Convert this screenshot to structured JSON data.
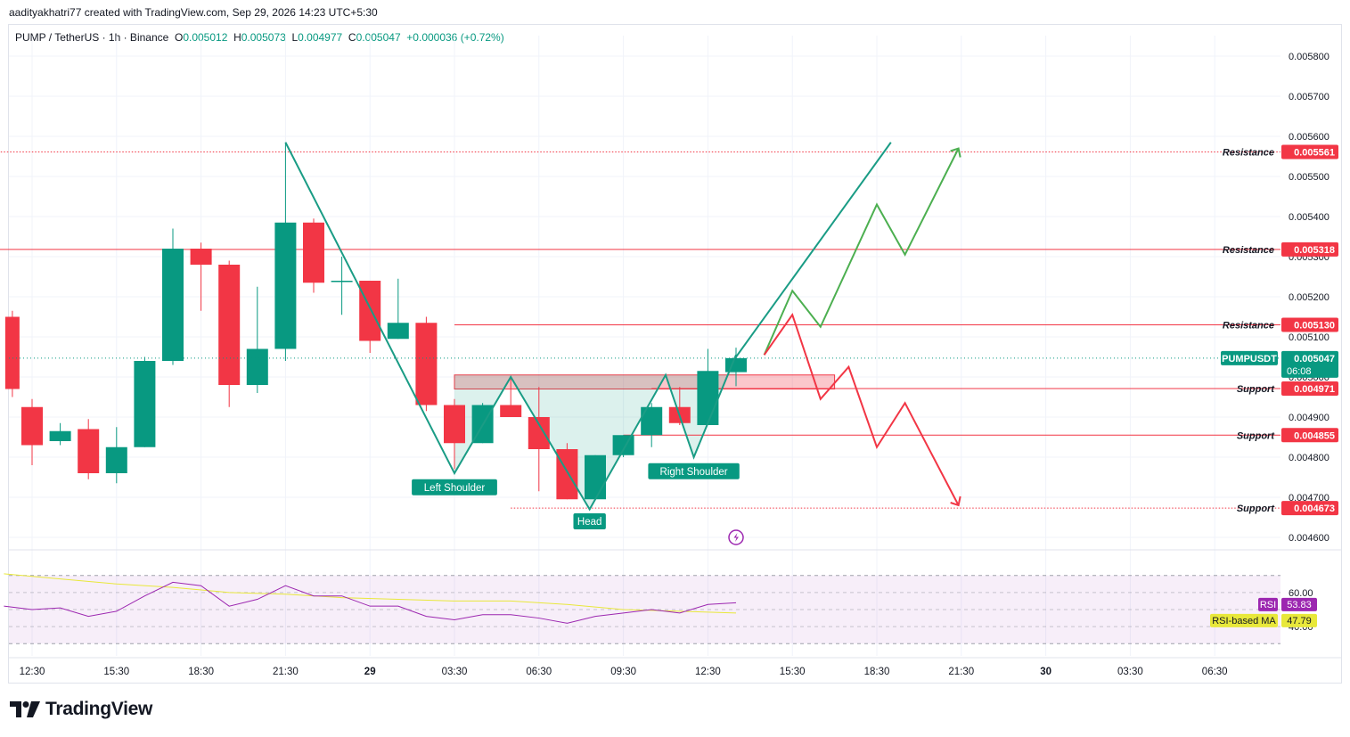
{
  "header": {
    "author_line": "aadityakhatri77 created with TradingView.com, Sep 29, 2026 14:23 UTC+5:30"
  },
  "symbol": {
    "pair": "PUMP / TetherUS · 1h · Binance",
    "o_label": "O",
    "o": "0.005012",
    "h_label": "H",
    "h": "0.005073",
    "l_label": "L",
    "l": "0.004977",
    "c_label": "C",
    "c": "0.005047",
    "change": "+0.000036 (+0.72%)"
  },
  "brand": {
    "name": "TradingView"
  },
  "colors": {
    "up": "#089981",
    "down": "#f23645",
    "rsi": "#9c27b0",
    "rsi_ma": "#e8e83a",
    "projection_green": "#4caf50",
    "level": "#f23645"
  },
  "chart_data": {
    "type": "candlestick",
    "symbol": "PUMPUSDT",
    "interval": "1h",
    "price_axis": {
      "ticks": [
        0.0058,
        0.0057,
        0.0056,
        0.0055,
        0.0054,
        0.0053,
        0.0052,
        0.0051,
        0.005,
        0.0049,
        0.0048,
        0.0047,
        0.0046
      ],
      "tick_labels": [
        "0.005800",
        "0.005700",
        "0.005600",
        "0.005500",
        "0.005400",
        "0.005300",
        "0.005200",
        "0.005100",
        "0.005000",
        "0.004900",
        "0.004800",
        "0.004700",
        "0.004600"
      ],
      "range": [
        0.00457,
        0.00584
      ]
    },
    "time_axis": {
      "labels": [
        "12:30",
        "15:30",
        "18:30",
        "21:30",
        "29",
        "03:30",
        "06:30",
        "09:30",
        "12:30",
        "15:30",
        "18:30",
        "21:30",
        "30",
        "03:30",
        "06:30"
      ],
      "label_bars": [
        0,
        3,
        6,
        9,
        12,
        15,
        18,
        21,
        24,
        27,
        30,
        33,
        36,
        39,
        42
      ]
    },
    "candles": [
      {
        "t": -0.7,
        "o": 0.00515,
        "h": 0.005165,
        "l": 0.00495,
        "c": 0.00497
      },
      {
        "t": 0,
        "o": 0.004925,
        "h": 0.004945,
        "l": 0.00478,
        "c": 0.00483
      },
      {
        "t": 1,
        "o": 0.00484,
        "h": 0.004885,
        "l": 0.00483,
        "c": 0.004865
      },
      {
        "t": 2,
        "o": 0.00487,
        "h": 0.004895,
        "l": 0.004745,
        "c": 0.00476
      },
      {
        "t": 3,
        "o": 0.00476,
        "h": 0.004875,
        "l": 0.004735,
        "c": 0.004825
      },
      {
        "t": 4,
        "o": 0.004825,
        "h": 0.00505,
        "l": 0.004825,
        "c": 0.00504
      },
      {
        "t": 5,
        "o": 0.00504,
        "h": 0.00537,
        "l": 0.00503,
        "c": 0.00532
      },
      {
        "t": 6,
        "o": 0.00532,
        "h": 0.005335,
        "l": 0.005165,
        "c": 0.00528
      },
      {
        "t": 7,
        "o": 0.00528,
        "h": 0.00529,
        "l": 0.004925,
        "c": 0.00498
      },
      {
        "t": 8,
        "o": 0.00498,
        "h": 0.005225,
        "l": 0.00496,
        "c": 0.00507
      },
      {
        "t": 9,
        "o": 0.00507,
        "h": 0.005585,
        "l": 0.00504,
        "c": 0.005385
      },
      {
        "t": 10,
        "o": 0.005385,
        "h": 0.005395,
        "l": 0.00521,
        "c": 0.005235
      },
      {
        "t": 11,
        "o": 0.00524,
        "h": 0.0053,
        "l": 0.005155,
        "c": 0.00524
      },
      {
        "t": 12,
        "o": 0.00524,
        "h": 0.00524,
        "l": 0.00506,
        "c": 0.00509
      },
      {
        "t": 13,
        "o": 0.005095,
        "h": 0.005245,
        "l": 0.005095,
        "c": 0.005135
      },
      {
        "t": 14,
        "o": 0.005135,
        "h": 0.00515,
        "l": 0.004915,
        "c": 0.00493
      },
      {
        "t": 15,
        "o": 0.00493,
        "h": 0.004945,
        "l": 0.00477,
        "c": 0.004835
      },
      {
        "t": 16,
        "o": 0.004835,
        "h": 0.004935,
        "l": 0.004835,
        "c": 0.00493
      },
      {
        "t": 17,
        "o": 0.00493,
        "h": 0.005,
        "l": 0.0049,
        "c": 0.0049
      },
      {
        "t": 18,
        "o": 0.0049,
        "h": 0.004975,
        "l": 0.004715,
        "c": 0.00482
      },
      {
        "t": 19,
        "o": 0.00482,
        "h": 0.004835,
        "l": 0.004695,
        "c": 0.004695
      },
      {
        "t": 20,
        "o": 0.004695,
        "h": 0.004805,
        "l": 0.004695,
        "c": 0.004805
      },
      {
        "t": 21,
        "o": 0.004805,
        "h": 0.004855,
        "l": 0.0048,
        "c": 0.004855
      },
      {
        "t": 22,
        "o": 0.004855,
        "h": 0.004935,
        "l": 0.004825,
        "c": 0.004925
      },
      {
        "t": 23,
        "o": 0.004925,
        "h": 0.004975,
        "l": 0.00488,
        "c": 0.004885
      },
      {
        "t": 24,
        "o": 0.00488,
        "h": 0.00507,
        "l": 0.00488,
        "c": 0.005015
      },
      {
        "t": 25,
        "o": 0.005012,
        "h": 0.005073,
        "l": 0.004977,
        "c": 0.005047
      }
    ],
    "current_price": {
      "symbol": "PUMPUSDT",
      "price": 0.005047,
      "price_label": "0.005047",
      "countdown": "06:08"
    },
    "levels": [
      {
        "name": "Resistance",
        "value": 0.005561,
        "label": "0.005561",
        "style": "dotted",
        "from_bar": -2
      },
      {
        "name": "Resistance",
        "value": 0.005318,
        "label": "0.005318",
        "style": "solid",
        "from_bar": -5
      },
      {
        "name": "Resistance",
        "value": 0.00513,
        "label": "0.005130",
        "style": "solid",
        "from_bar": 15
      },
      {
        "name": "Support",
        "value": 0.004971,
        "label": "0.004971",
        "style": "solid",
        "from_bar": 22
      },
      {
        "name": "Support",
        "value": 0.004855,
        "label": "0.004855",
        "style": "solid",
        "from_bar": 21
      },
      {
        "name": "Support",
        "value": 0.004673,
        "label": "0.004673",
        "style": "dotted",
        "from_bar": 17
      }
    ],
    "annotations": [
      {
        "text": "Left Shoulder",
        "bar": 15
      },
      {
        "text": "Head",
        "bar": 19.8
      },
      {
        "text": "Right Shoulder",
        "bar": 23.5
      }
    ],
    "pattern_zigzag": [
      [
        9,
        0.005585
      ],
      [
        15,
        0.00476
      ],
      [
        17,
        0.005
      ],
      [
        19.8,
        0.00467
      ],
      [
        22.5,
        0.005005
      ],
      [
        23.5,
        0.0048
      ],
      [
        25,
        0.005055
      ]
    ],
    "neckline_zone": {
      "from_bar": 15,
      "to_bar": 28.5,
      "top": 0.005005,
      "bottom": 0.00497
    },
    "projection_up_teal": [
      [
        25,
        0.00505
      ],
      [
        30.5,
        0.005585
      ]
    ],
    "projection_up_green": [
      [
        26,
        0.005055
      ],
      [
        27,
        0.005215
      ],
      [
        28,
        0.005125
      ],
      [
        30,
        0.00543
      ],
      [
        31,
        0.005305
      ],
      [
        32.9,
        0.00557
      ]
    ],
    "projection_down_red": [
      [
        26,
        0.005055
      ],
      [
        27,
        0.005155
      ],
      [
        28,
        0.004945
      ],
      [
        29,
        0.005025
      ],
      [
        30,
        0.004825
      ],
      [
        31,
        0.004935
      ],
      [
        32.9,
        0.00468
      ]
    ],
    "rsi": {
      "label": "RSI",
      "value": "53.83",
      "ma_label": "RSI-based MA",
      "ma_value": "47.79",
      "levels": [
        70,
        60,
        50,
        40,
        30
      ],
      "tick_labels": [
        "60.00",
        "40.00"
      ],
      "range": [
        27,
        73
      ],
      "values": [
        [
          -1,
          52
        ],
        [
          0,
          50
        ],
        [
          1,
          51
        ],
        [
          2,
          46
        ],
        [
          3,
          49
        ],
        [
          4,
          58
        ],
        [
          5,
          66
        ],
        [
          6,
          64
        ],
        [
          7,
          52
        ],
        [
          8,
          56
        ],
        [
          9,
          64
        ],
        [
          10,
          58
        ],
        [
          11,
          58
        ],
        [
          12,
          52
        ],
        [
          13,
          52
        ],
        [
          14,
          46
        ],
        [
          15,
          44
        ],
        [
          16,
          47
        ],
        [
          17,
          47
        ],
        [
          18,
          45
        ],
        [
          19,
          42
        ],
        [
          20,
          46
        ],
        [
          21,
          48
        ],
        [
          22,
          50
        ],
        [
          23,
          48
        ],
        [
          24,
          53
        ],
        [
          25,
          54
        ]
      ],
      "ma_values": [
        [
          -1,
          71
        ],
        [
          1,
          68
        ],
        [
          3,
          65
        ],
        [
          5,
          63
        ],
        [
          7,
          60
        ],
        [
          9,
          59
        ],
        [
          11,
          57
        ],
        [
          13,
          56
        ],
        [
          15,
          55
        ],
        [
          17,
          55
        ],
        [
          19,
          53
        ],
        [
          21,
          50
        ],
        [
          23,
          49
        ],
        [
          25,
          48
        ]
      ]
    }
  }
}
